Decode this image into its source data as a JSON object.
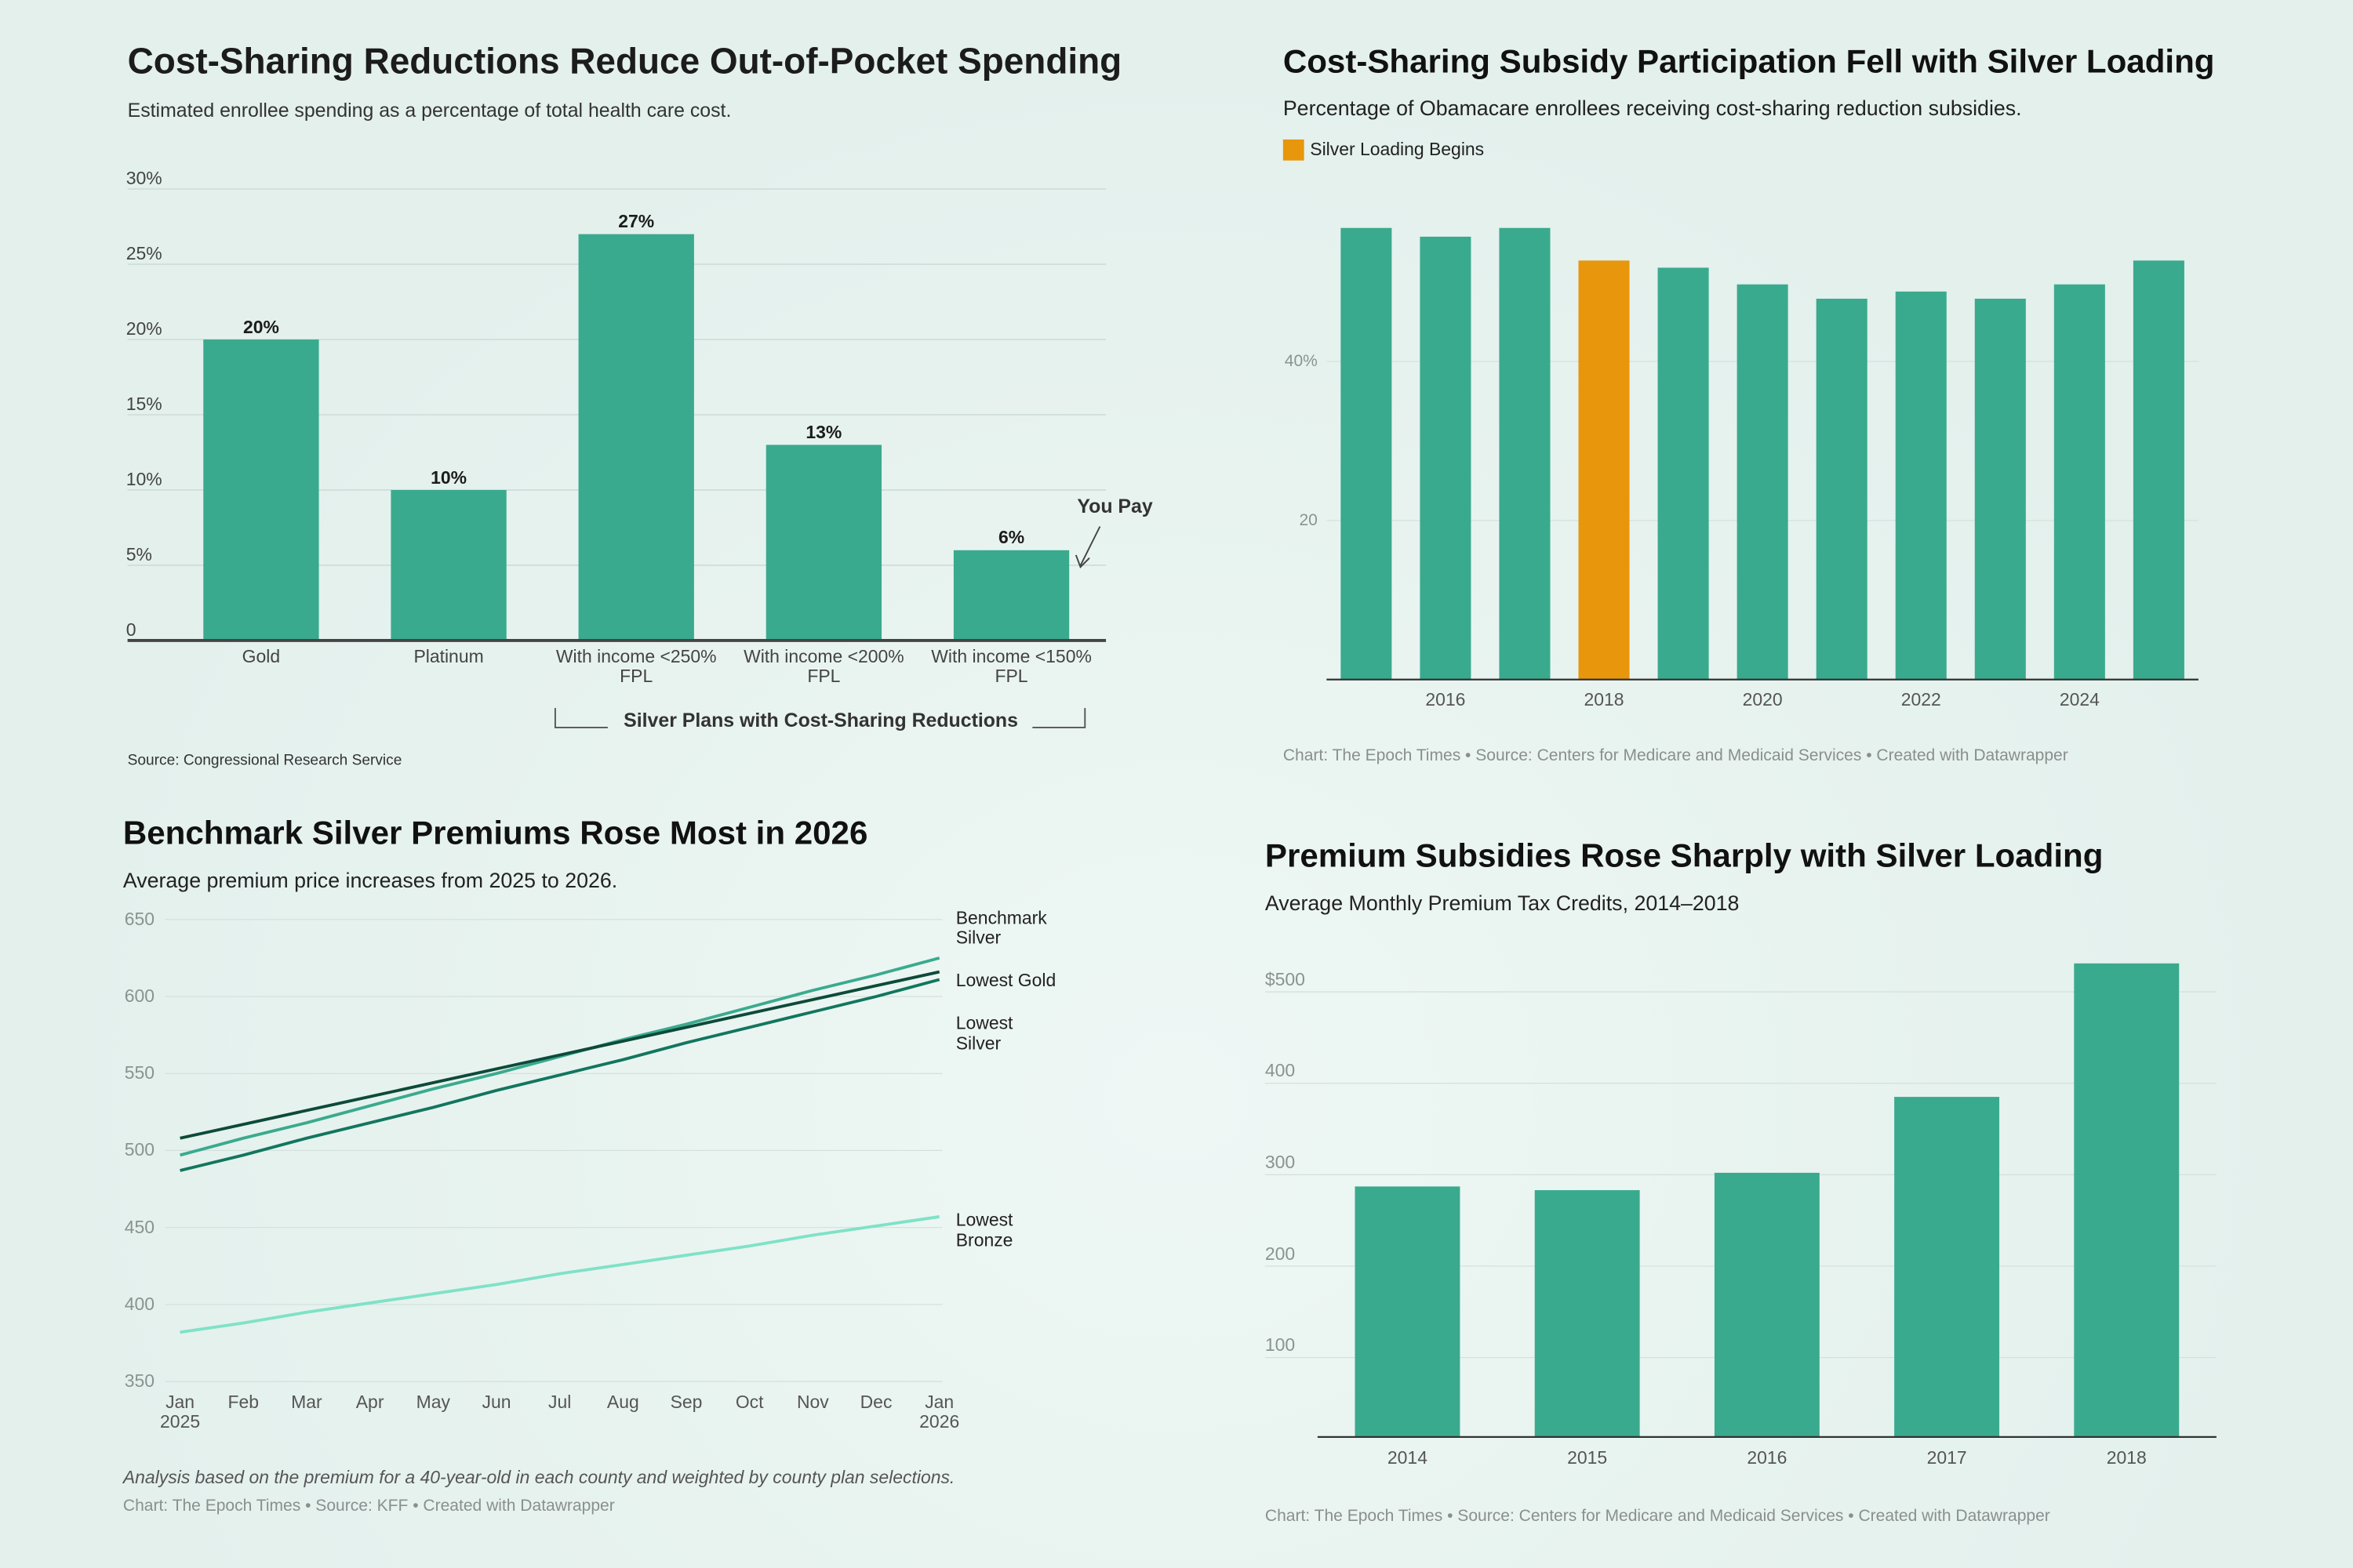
{
  "chart_data": [
    {
      "type": "bar",
      "title": "Cost-Sharing Reductions Reduce Out-of-Pocket Spending",
      "subtitle": "Estimated enrollee spending as a percentage of total health care cost.",
      "categories": [
        "Gold",
        "Platinum",
        "With income <250% FPL",
        "With income <200% FPL",
        "With income <150% FPL"
      ],
      "values": [
        20,
        10,
        27,
        13,
        6
      ],
      "value_labels": [
        "20%",
        "10%",
        "27%",
        "13%",
        "6%"
      ],
      "color": "#3aaa8e",
      "ylim": [
        0,
        30
      ],
      "yticks": [
        0,
        {
          "value": 5,
          "label": "5%"
        },
        {
          "value": 10,
          "label": "10%"
        },
        {
          "value": 15,
          "label": "15%"
        },
        {
          "value": 20,
          "label": "20%"
        },
        {
          "value": 25,
          "label": "25%"
        },
        {
          "value": 30,
          "label": "30%"
        }
      ],
      "grid": true,
      "annotation": "You Pay",
      "group_label": "Silver Plans with Cost-Sharing Reductions",
      "source": "Source: Congressional Research Service"
    },
    {
      "type": "bar",
      "title": "Cost-Sharing Subsidy Participation Fell with Silver Loading",
      "subtitle": "Percentage of Obamacare enrollees receiving cost-sharing reduction subsidies.",
      "legend": {
        "label": "Silver Loading Begins",
        "color": "#e8960c"
      },
      "categories": [
        null,
        "2016",
        null,
        "2018",
        null,
        "2020",
        null,
        "2022",
        null,
        "2024",
        null
      ],
      "values": [
        56.8,
        55.7,
        56.8,
        52.7,
        51.8,
        49.7,
        47.9,
        48.8,
        47.9,
        49.7,
        52.7
      ],
      "bar_colors": [
        "#3aaa8e",
        "#3aaa8e",
        "#3aaa8e",
        "#e8960c",
        "#3aaa8e",
        "#3aaa8e",
        "#3aaa8e",
        "#3aaa8e",
        "#3aaa8e",
        "#3aaa8e",
        "#3aaa8e"
      ],
      "ylim": [
        0,
        60
      ],
      "yticks": [
        20,
        {
          "value": 40,
          "label": "40%"
        }
      ],
      "grid": true,
      "source": "Chart: The Epoch Times  • Source: Centers for Medicare and Medicaid Services • Created with Datawrapper"
    },
    {
      "type": "line",
      "title": "Benchmark Silver Premiums Rose Most in 2026",
      "subtitle": "Average premium price increases from 2025 to 2026.",
      "categories": [
        "Jan 2025",
        "Feb",
        "Mar",
        "Apr",
        "May",
        "Jun",
        "Jul",
        "Aug",
        "Sep",
        "Oct",
        "Nov",
        "Dec",
        "Jan 2026"
      ],
      "series": [
        {
          "name": "Benchmark Silver",
          "color": "#3aaa8e",
          "values": [
            497,
            508,
            518,
            529,
            540,
            550,
            561,
            572,
            582,
            593,
            604,
            614,
            625
          ]
        },
        {
          "name": "Lowest Gold",
          "color": "#0d4a39",
          "values": [
            508,
            517,
            526,
            535,
            544,
            553,
            562,
            571,
            580,
            589,
            598,
            607,
            616
          ]
        },
        {
          "name": "Lowest Silver",
          "color": "#12765e",
          "values": [
            487,
            497,
            508,
            518,
            528,
            539,
            549,
            559,
            570,
            580,
            590,
            600,
            611
          ]
        },
        {
          "name": "Lowest Bronze",
          "color": "#7fe2c6",
          "values": [
            382,
            388,
            395,
            401,
            407,
            413,
            420,
            426,
            432,
            438,
            445,
            451,
            457
          ]
        }
      ],
      "ylim": [
        350,
        650
      ],
      "yticks": [
        350,
        400,
        450,
        500,
        550,
        600,
        650
      ],
      "grid": true,
      "note": "Analysis based on the premium for a 40-year-old in each county and weighted by county plan selections.",
      "source": "Chart: The Epoch Times  • Source: KFF • Created with Datawrapper"
    },
    {
      "type": "bar",
      "title": "Premium Subsidies Rose Sharply with Silver Loading",
      "subtitle": "Average Monthly Premium Tax Credits, 2014–2018",
      "categories": [
        "2014",
        "2015",
        "2016",
        "2017",
        "2018"
      ],
      "values": [
        274,
        270,
        289,
        372,
        518
      ],
      "color": "#3aaa8e",
      "ylim": [
        0,
        525
      ],
      "yticks": [
        100,
        200,
        300,
        400,
        {
          "value": 500,
          "label": "$500"
        }
      ],
      "grid": true,
      "source": "Chart: The Epoch Times  • Source: Centers for Medicare and Medicaid Services • Created with Datawrapper"
    }
  ]
}
